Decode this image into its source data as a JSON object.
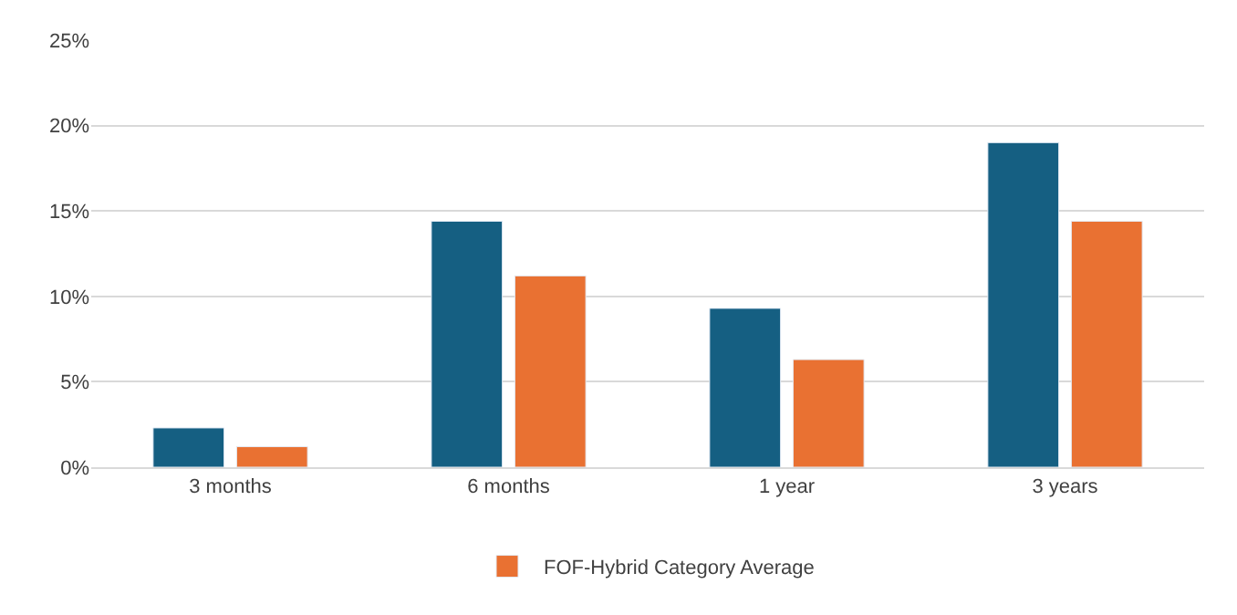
{
  "chart_data": {
    "type": "bar",
    "categories": [
      "3 months",
      "6 months",
      "1 year",
      "3 years"
    ],
    "series": [
      {
        "color": "#155f82",
        "values": [
          2.3,
          14.4,
          9.3,
          19.0
        ]
      },
      {
        "name": "FOF-Hybrid Category Average",
        "color": "#e97132",
        "values": [
          1.2,
          11.2,
          6.3,
          14.4
        ]
      }
    ],
    "ylim": [
      0,
      25
    ],
    "yticks": [
      {
        "value": 0,
        "label": "0%"
      },
      {
        "value": 5,
        "label": "5%"
      },
      {
        "value": 10,
        "label": "10%"
      },
      {
        "value": 15,
        "label": "15%"
      },
      {
        "value": 20,
        "label": "20%"
      },
      {
        "value": 25,
        "label": "25%"
      }
    ],
    "grid": "y",
    "legend": "bottom"
  }
}
